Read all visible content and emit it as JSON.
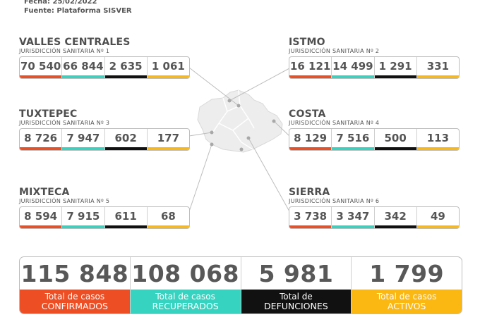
{
  "header": {
    "date_line": "Fecha: 25/02/2022",
    "source_line": "Fuente: Plataforma SISVER"
  },
  "colors": {
    "confirmed": "#ee4e23",
    "recovered": "#36d3c0",
    "deaths": "#111111",
    "active": "#fbb813"
  },
  "regions": [
    {
      "name": "VALLES CENTRALES",
      "jurisdiction": "JURISDICCIÓN SANITARIA Nº 1",
      "confirmed": "70 540",
      "recovered": "66 844",
      "deaths": "2 635",
      "active": "1 061"
    },
    {
      "name": "ISTMO",
      "jurisdiction": "JURISDICCIÓN SANITARIA Nº 2",
      "confirmed": "16 121",
      "recovered": "14 499",
      "deaths": "1 291",
      "active": "331"
    },
    {
      "name": "TUXTEPEC",
      "jurisdiction": "JURISDICCIÓN SANITARIA Nº 3",
      "confirmed": "8 726",
      "recovered": "7 947",
      "deaths": "602",
      "active": "177"
    },
    {
      "name": "COSTA",
      "jurisdiction": "JURISDICCIÓN SANITARIA Nº 4",
      "confirmed": "8 129",
      "recovered": "7 516",
      "deaths": "500",
      "active": "113"
    },
    {
      "name": "MIXTECA",
      "jurisdiction": "JURISDICCIÓN SANITARIA Nº 5",
      "confirmed": "8 594",
      "recovered": "7 915",
      "deaths": "611",
      "active": "68"
    },
    {
      "name": "SIERRA",
      "jurisdiction": "JURISDICCIÓN SANITARIA Nº 6",
      "confirmed": "3 738",
      "recovered": "3 347",
      "deaths": "342",
      "active": "49"
    }
  ],
  "totals": [
    {
      "value": "115 848",
      "label_top": "Total de casos",
      "label_bottom": "CONFIRMADOS"
    },
    {
      "value": "108 068",
      "label_top": "Total de casos",
      "label_bottom": "RECUPERADOS"
    },
    {
      "value": "5 981",
      "label_top": "Total de",
      "label_bottom": "DEFUNCIONES"
    },
    {
      "value": "1 799",
      "label_top": "Total de casos",
      "label_bottom": "ACTIVOS"
    }
  ]
}
